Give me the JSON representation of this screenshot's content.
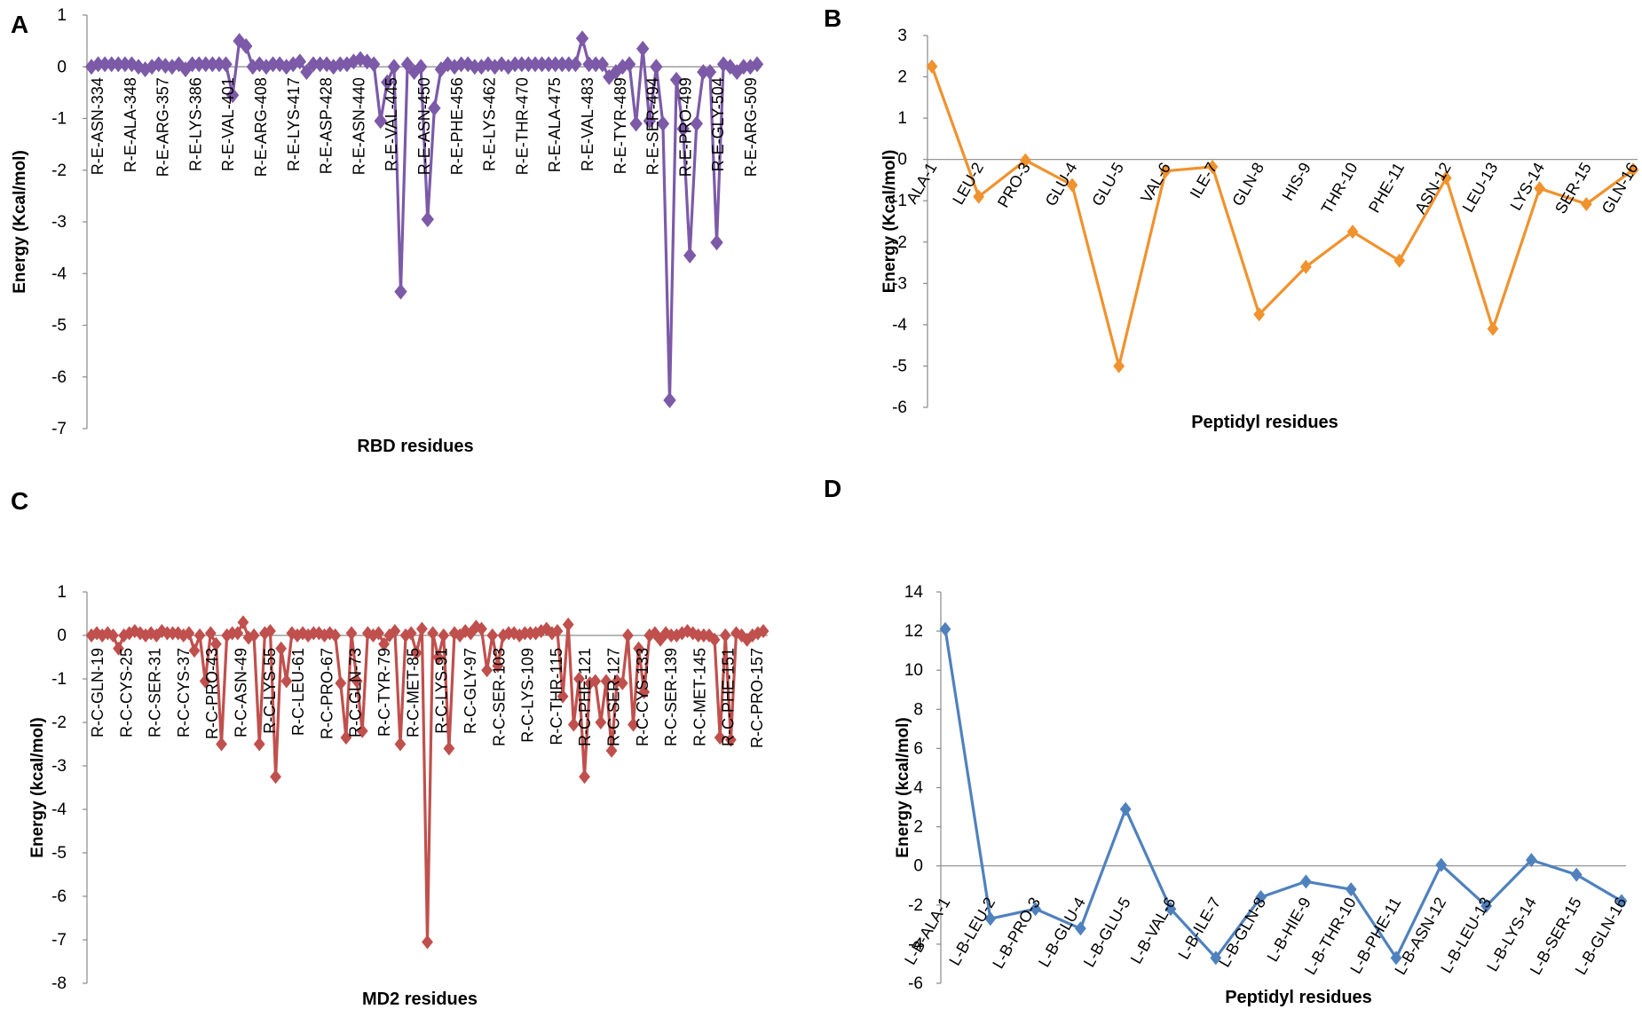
{
  "chart_data": [
    {
      "panel": "A",
      "type": "line",
      "title": "",
      "xlabel": "RBD residues",
      "ylabel": "Energy (Kcal/mol)",
      "ylim": [
        -7,
        1
      ],
      "yticks": [
        1,
        0,
        -1,
        -2,
        -3,
        -4,
        -5,
        -6,
        -7
      ],
      "color": "#7c5aa8",
      "category_labels": [
        "R-E-ASN-334",
        "R-E-ALA-348",
        "R-E-ARG-357",
        "R-E-LYS-386",
        "R-E-VAL-401",
        "R-E-ARG-408",
        "R-E-LYS-417",
        "R-E-ASP-428",
        "R-E-ASN-440",
        "R-E-VAL-445",
        "R-E-ASN-450",
        "R-E-PHE-456",
        "R-E-LYS-462",
        "R-E-THR-470",
        "R-E-ALA-475",
        "R-E-VAL-483",
        "R-E-TYR-489",
        "R-E-SER-494",
        "R-E-PRO-499",
        "R-E-GLY-504",
        "R-E-ARG-509"
      ],
      "values": [
        0,
        0.05,
        0.05,
        0.05,
        0.05,
        0.05,
        0.05,
        0,
        -0.05,
        0,
        0.05,
        0.02,
        0,
        0.05,
        -0.05,
        0.05,
        0.05,
        0.05,
        0.05,
        0.05,
        0.05,
        -0.55,
        0.5,
        0.4,
        0,
        0.05,
        0,
        0.05,
        0.05,
        0,
        0.05,
        0.1,
        -0.1,
        0.05,
        0.05,
        0.05,
        0,
        0.05,
        0.05,
        0.1,
        0.15,
        0.1,
        0.05,
        -1.05,
        -0.3,
        0,
        -4.35,
        0.05,
        -0.1,
        0,
        -2.95,
        -0.8,
        -0.05,
        0.05,
        0,
        0.05,
        0.05,
        0,
        0,
        0.05,
        0,
        0.05,
        0,
        0.05,
        0.05,
        0.05,
        0.05,
        0.05,
        0.05,
        0.05,
        0.05,
        0.05,
        0.05,
        0.55,
        0.05,
        0.05,
        0.05,
        -0.2,
        -0.1,
        0,
        0.05,
        -1.1,
        0.35,
        -1.05,
        0,
        -1.1,
        -6.45,
        -0.25,
        -1.2,
        -3.65,
        -1.1,
        -0.1,
        -0.1,
        -3.4,
        0.05,
        0,
        -0.1,
        0,
        0,
        0.05
      ]
    },
    {
      "panel": "B",
      "type": "line",
      "title": "",
      "xlabel": "Peptidyl residues",
      "ylabel": "Energy (Kcal/mol)",
      "ylim": [
        -6,
        3
      ],
      "yticks": [
        3,
        2,
        1,
        0,
        -1,
        -2,
        -3,
        -4,
        -5,
        -6
      ],
      "color": "#f0922e",
      "categories": [
        "ALA-1",
        "LEU-2",
        "PRO-3",
        "GLU-4",
        "GLU-5",
        "VAL-6",
        "ILE-7",
        "GLN-8",
        "HIS-9",
        "THR-10",
        "PHE-11",
        "ASN-12",
        "LEU-13",
        "LYS-14",
        "SER-15",
        "GLN-16"
      ],
      "values": [
        2.25,
        -0.9,
        -0.02,
        -0.62,
        -5.0,
        -0.28,
        -0.18,
        -3.75,
        -2.6,
        -1.75,
        -2.45,
        -0.45,
        -4.1,
        -0.7,
        -1.08,
        -0.25
      ]
    },
    {
      "panel": "C",
      "type": "line",
      "title": "",
      "xlabel": "MD2 residues",
      "ylabel": "Energy (kcal/mol)",
      "ylim": [
        -8,
        1
      ],
      "yticks": [
        1,
        0,
        -1,
        -2,
        -3,
        -4,
        -5,
        -6,
        -7,
        -8
      ],
      "color": "#c0504d",
      "category_labels": [
        "R-C-GLN-19",
        "R-C-CYS-25",
        "R-C-SER-31",
        "R-C-CYS-37",
        "R-C-PRO-43",
        "R-C-ASN-49",
        "R-C-LYS-55",
        "R-C-LEU-61",
        "R-C-PRO-67",
        "R-C-GLN-73",
        "R-C-TYR-79",
        "R-C-MET-85",
        "R-C-LYS-91",
        "R-C-GLY-97",
        "R-C-SER-103",
        "R-C-LYS-109",
        "R-C-THR-115",
        "R-C-PHE-121",
        "R-C-SER-127",
        "R-C-CYS-133",
        "R-C-SER-139",
        "R-C-MET-145",
        "R-C-PHE-151",
        "R-C-PRO-157"
      ],
      "values": [
        0,
        0.05,
        0,
        0.05,
        0,
        -0.3,
        0,
        0.05,
        0.1,
        0.05,
        0,
        0.05,
        0,
        0.1,
        0.05,
        0.05,
        0.05,
        0,
        0.05,
        -0.35,
        0,
        -1.05,
        0.05,
        -0.2,
        -2.5,
        0,
        0.05,
        0.05,
        0.3,
        -0.05,
        0,
        -2.5,
        0.05,
        0.1,
        -3.25,
        -0.3,
        -1.05,
        0.05,
        0,
        0.05,
        0,
        0.05,
        0.05,
        0,
        0.05,
        0,
        -1.1,
        -2.35,
        0.05,
        -1.05,
        -2.2,
        0.05,
        0,
        0.05,
        -0.2,
        0,
        0.1,
        -2.5,
        0,
        0.05,
        -0.4,
        0.15,
        -7.05,
        0.05,
        -0.5,
        0,
        -2.6,
        0.05,
        0,
        0.1,
        0.05,
        0.2,
        0.15,
        -0.8,
        0,
        -0.7,
        0,
        0.05,
        0.05,
        0,
        0.05,
        0.05,
        0.05,
        0.1,
        0.15,
        0.05,
        0.1,
        -1.4,
        0.25,
        -2.05,
        -1.0,
        -3.25,
        -1.1,
        -1.05,
        -2.0,
        -1.05,
        -2.65,
        -1.05,
        -1.1,
        0,
        -2.05,
        -0.3,
        -1.3,
        0,
        0.05,
        -0.1,
        0.05,
        0,
        0,
        0.05,
        0.1,
        0.05,
        0,
        0,
        0,
        -0.1,
        -2.35,
        0,
        -2.4,
        0.05,
        0,
        -0.1,
        0,
        0.05,
        0.1
      ]
    },
    {
      "panel": "D",
      "type": "line",
      "title": "",
      "xlabel": "Peptidyl residues",
      "ylabel": "Energy (kcal/mol)",
      "ylim": [
        -6,
        14
      ],
      "yticks": [
        14,
        12,
        10,
        8,
        6,
        4,
        2,
        0,
        -2,
        -4,
        -6
      ],
      "color": "#4f81bd",
      "categories": [
        "L-B-ALA-1",
        "L-B-LEU-2",
        "L-B-PRO-3",
        "L-B-GLU-4",
        "L-B-GLU-5",
        "L-B-VAL-6",
        "L-B-ILE-7",
        "L-B-GLN-8",
        "L-B-HIE-9",
        "L-B-THR-10",
        "L-B-PHE-11",
        "L-B-ASN-12",
        "L-B-LEU-13",
        "L-B-LYS-14",
        "L-B-SER-15",
        "L-B-GLN-16"
      ],
      "values": [
        12.1,
        -2.7,
        -2.2,
        -3.2,
        2.9,
        -2.2,
        -4.7,
        -1.6,
        -0.8,
        -1.2,
        -4.7,
        0.05,
        -2.05,
        0.3,
        -0.45,
        -1.8
      ]
    }
  ]
}
